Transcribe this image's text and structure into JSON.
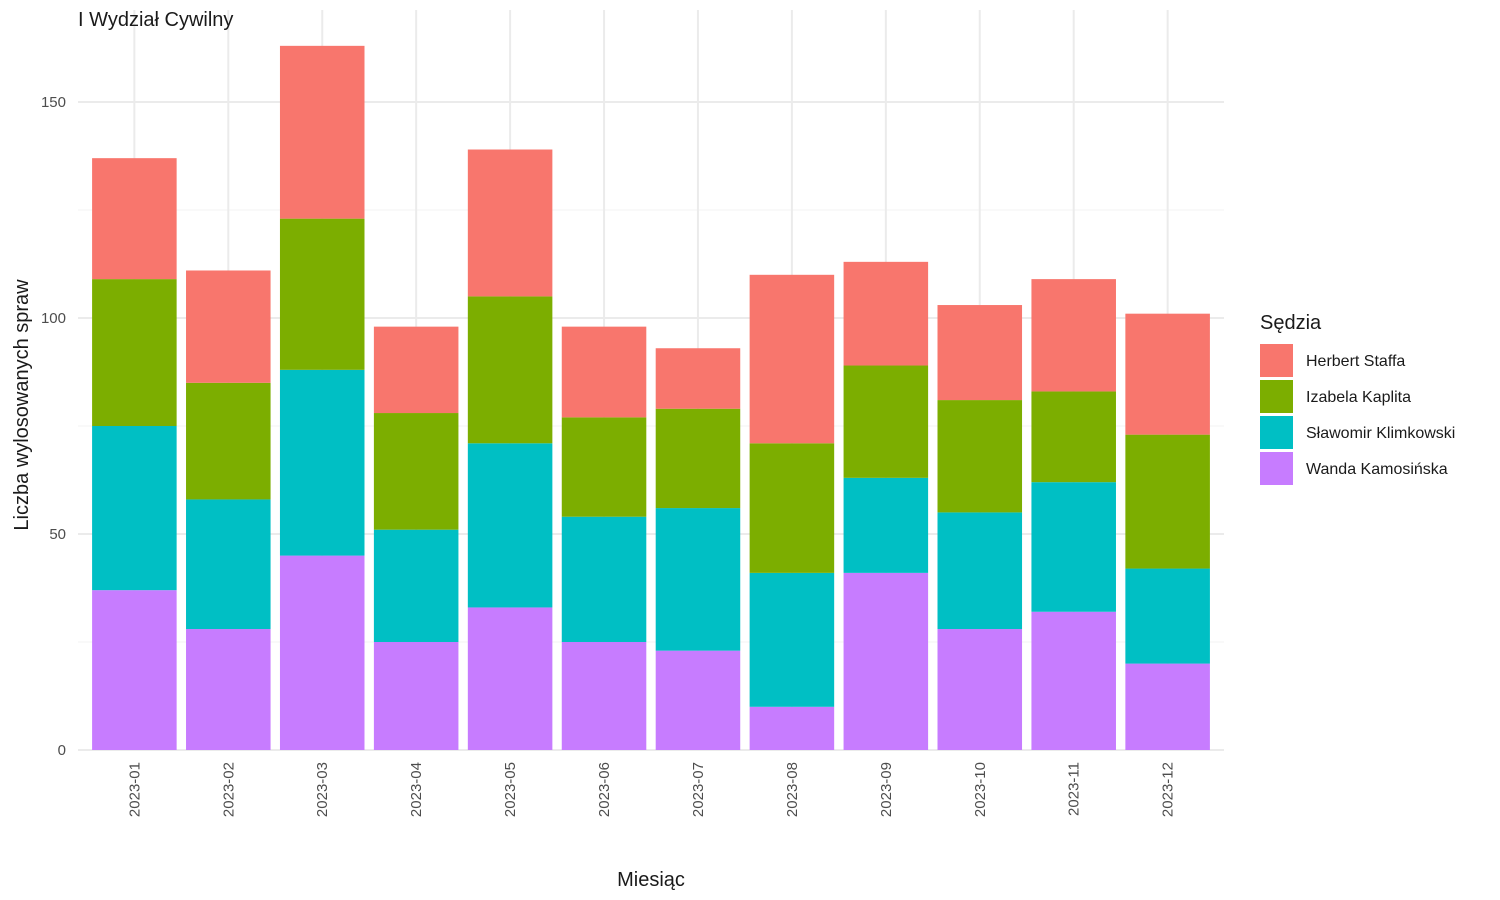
{
  "chart_data": {
    "type": "bar",
    "stacked": true,
    "title": "I Wydział Cywilny",
    "xlabel": "Miesiąc",
    "ylabel": "Liczba wylosowanych spraw",
    "ylim": [
      0,
      165
    ],
    "yticks": [
      0,
      50,
      100,
      150
    ],
    "grid": true,
    "legend_position": "right",
    "legend_title": "Sędzia",
    "categories": [
      "2023-01",
      "2023-02",
      "2023-03",
      "2023-04",
      "2023-05",
      "2023-06",
      "2023-07",
      "2023-08",
      "2023-09",
      "2023-10",
      "2023-11",
      "2023-12"
    ],
    "series": [
      {
        "name": "Wanda Kamosińska",
        "color": "#C77CFF",
        "values": [
          37,
          28,
          45,
          25,
          33,
          25,
          23,
          10,
          41,
          28,
          32,
          20
        ]
      },
      {
        "name": "Sławomir Klimkowski",
        "color": "#00BFC4",
        "values": [
          38,
          30,
          43,
          26,
          38,
          29,
          33,
          31,
          22,
          27,
          30,
          22
        ]
      },
      {
        "name": "Izabela Kaplita",
        "color": "#7CAE00",
        "values": [
          34,
          27,
          35,
          27,
          34,
          23,
          23,
          30,
          26,
          26,
          21,
          31
        ]
      },
      {
        "name": "Herbert Staffa",
        "color": "#F8766D",
        "values": [
          28,
          26,
          40,
          20,
          34,
          21,
          14,
          39,
          24,
          22,
          26,
          28
        ]
      }
    ],
    "legend_order": [
      "Herbert Staffa",
      "Izabela Kaplita",
      "Sławomir Klimkowski",
      "Wanda Kamosińska"
    ]
  }
}
